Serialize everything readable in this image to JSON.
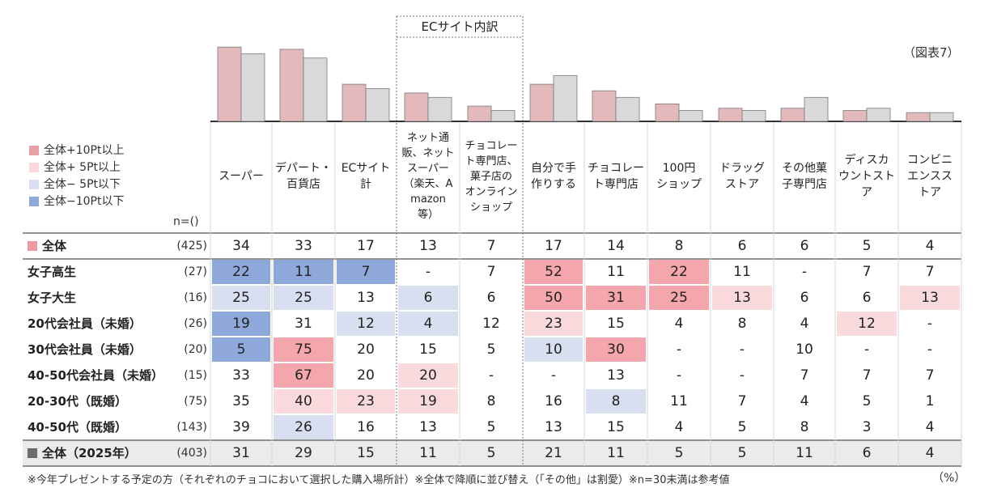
{
  "figure_ref": "（図表7）",
  "ec_group_label": "ECサイト内訳",
  "n_header": "n=()",
  "legend": [
    {
      "label": "全体+10Pt以上",
      "color": "#e8a0a6"
    },
    {
      "label": "全体+ 5Pt以上",
      "color": "#fadadd"
    },
    {
      "label": "全体− 5Pt以下",
      "color": "#d8dff0"
    },
    {
      "label": "全体−10Pt以下",
      "color": "#8fa8da"
    }
  ],
  "colors": {
    "bar_total": "#e3b9bc",
    "bar_2025": "#d9d9d9",
    "plus10": "#f4a6ac",
    "plus5": "#fadadd",
    "minus5": "#d8dff0",
    "minus10": "#8fa8da",
    "row_total_bg": "#ebebeb",
    "total_marker": "#ee9aa2",
    "total2025_marker": "#6d6d6d"
  },
  "chart_data": {
    "type": "bar",
    "categories": [
      "スーパー",
      "デパート・\n百貨店",
      "ECサイト\n計",
      "ネット通\n販、ネット\nスーパー\n（楽天、A\nmazon\n等）",
      "チョコレー\nト専門店、\n菓子店の\nオンライン\nショップ",
      "自分で手\n作りする",
      "チョコレー\nト専門店",
      "100円\nショップ",
      "ドラッグ\nストア",
      "その他菓\n子専門店",
      "ディスカ\nウントスト\nア",
      "コンビニ\nエンスス\nトア"
    ],
    "series": [
      {
        "name": "全体",
        "values": [
          34,
          33,
          17,
          13,
          7,
          17,
          14,
          8,
          6,
          6,
          5,
          4
        ]
      },
      {
        "name": "全体(2025年)",
        "values": [
          31,
          29,
          15,
          11,
          5,
          21,
          11,
          5,
          5,
          11,
          6,
          4
        ]
      }
    ],
    "unit": "（%）"
  },
  "table": {
    "rows": [
      {
        "label": "全体",
        "n": "(425)",
        "values": [
          "34",
          "33",
          "17",
          "13",
          "7",
          "17",
          "14",
          "8",
          "6",
          "6",
          "5",
          "4"
        ],
        "styles": [
          "",
          "",
          "",
          "",
          "",
          "",
          "",
          "",
          "",
          "",
          "",
          ""
        ],
        "kind": "total"
      },
      {
        "label": "女子高生",
        "n": "(27)",
        "values": [
          "22",
          "11",
          "7",
          "-",
          "7",
          "52",
          "11",
          "22",
          "11",
          "-",
          "7",
          "7"
        ],
        "styles": [
          "minus10",
          "minus10",
          "minus10",
          "",
          "",
          "plus10",
          "",
          "plus10",
          "",
          "",
          "",
          ""
        ],
        "kind": "segment"
      },
      {
        "label": "女子大生",
        "n": "(16)",
        "values": [
          "25",
          "25",
          "13",
          "6",
          "6",
          "50",
          "31",
          "25",
          "13",
          "6",
          "6",
          "13"
        ],
        "styles": [
          "minus5",
          "minus5",
          "",
          "minus5",
          "",
          "plus10",
          "plus10",
          "plus10",
          "plus5",
          "",
          "",
          "plus5"
        ],
        "kind": "segment"
      },
      {
        "label": "20代会社員（未婚）",
        "n": "(26)",
        "values": [
          "19",
          "31",
          "12",
          "4",
          "12",
          "23",
          "15",
          "4",
          "8",
          "4",
          "12",
          "-"
        ],
        "styles": [
          "minus10",
          "",
          "minus5",
          "minus5",
          "",
          "plus5",
          "",
          "",
          "",
          "",
          "plus5",
          ""
        ],
        "kind": "segment"
      },
      {
        "label": "30代会社員（未婚）",
        "n": "(20)",
        "values": [
          "5",
          "75",
          "20",
          "15",
          "5",
          "10",
          "30",
          "-",
          "-",
          "10",
          "-",
          "-"
        ],
        "styles": [
          "minus10",
          "plus10",
          "",
          "",
          "",
          "minus5",
          "plus10",
          "",
          "",
          "",
          "",
          ""
        ],
        "kind": "segment"
      },
      {
        "label": "40-50代会社員（未婚）",
        "n": "(15)",
        "values": [
          "33",
          "67",
          "20",
          "20",
          "-",
          "-",
          "13",
          "-",
          "-",
          "7",
          "7",
          "7"
        ],
        "styles": [
          "",
          "plus10",
          "",
          "plus5",
          "",
          "",
          "",
          "",
          "",
          "",
          "",
          ""
        ],
        "kind": "segment"
      },
      {
        "label": "20-30代（既婚）",
        "n": "(75)",
        "values": [
          "35",
          "40",
          "23",
          "19",
          "8",
          "16",
          "8",
          "11",
          "7",
          "4",
          "5",
          "1"
        ],
        "styles": [
          "",
          "plus5",
          "plus5",
          "plus5",
          "",
          "",
          "minus5",
          "",
          "",
          "",
          "",
          ""
        ],
        "kind": "segment"
      },
      {
        "label": "40-50代（既婚）",
        "n": "(143)",
        "values": [
          "39",
          "26",
          "16",
          "13",
          "5",
          "13",
          "15",
          "4",
          "5",
          "8",
          "3",
          "4"
        ],
        "styles": [
          "",
          "minus5",
          "",
          "",
          "",
          "",
          "",
          "",
          "",
          "",
          "",
          ""
        ],
        "kind": "segment"
      },
      {
        "label": "全体（2025年）",
        "n": "(403)",
        "values": [
          "31",
          "29",
          "15",
          "11",
          "5",
          "21",
          "11",
          "5",
          "5",
          "11",
          "6",
          "4"
        ],
        "styles": [
          "",
          "",
          "",
          "",
          "",
          "",
          "",
          "",
          "",
          "",
          "",
          ""
        ],
        "kind": "total2025"
      }
    ]
  },
  "footnote": "※今年プレゼントする予定の方（それぞれのチョコにおいて選択した購入場所計）※全体で降順に並び替え（「その他」は割愛）※n=30未満は参考値",
  "unit_label": "（%）"
}
